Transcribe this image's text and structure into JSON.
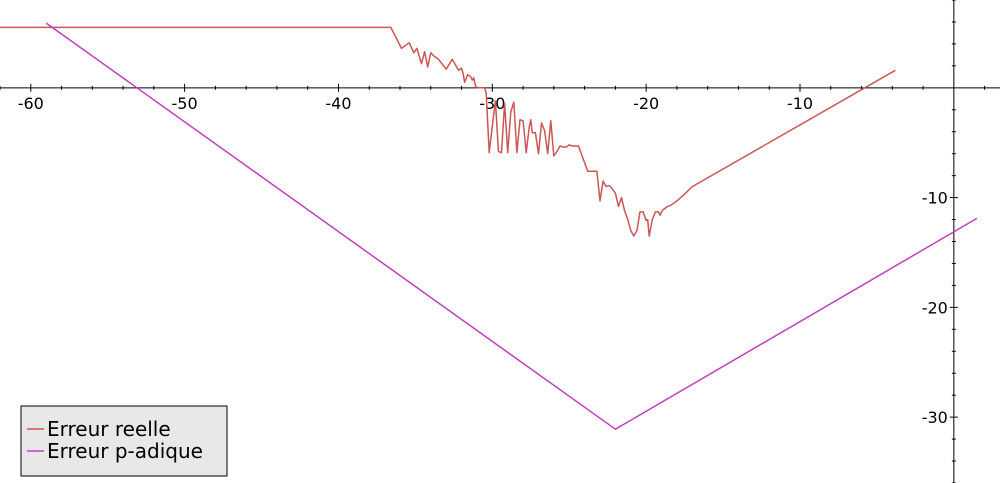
{
  "chart_data": {
    "type": "line",
    "title": "",
    "xlabel": "",
    "ylabel": "",
    "xlim": [
      -62,
      3
    ],
    "ylim": [
      -36,
      8
    ],
    "grid": false,
    "legend_position": "bottom-left",
    "x_ticks": [
      -60,
      -50,
      -40,
      -30,
      -20,
      -10
    ],
    "y_ticks": [
      -10,
      -20,
      -30
    ],
    "series": [
      {
        "name": "Erreur reelle",
        "color": "#cc5555",
        "x": [
          -62,
          -36.6,
          -35.9,
          -35.4,
          -35.1,
          -34.9,
          -34.6,
          -34.4,
          -34.2,
          -34.0,
          -33.8,
          -33.5,
          -33.0,
          -32.6,
          -32.2,
          -32.0,
          -31.9,
          -31.8,
          -31.6,
          -31.4,
          -31.3,
          -31.2,
          -31.1,
          -31.0,
          -30.8,
          -30.6,
          -30.5,
          -30.4,
          -30.2,
          -30.0,
          -29.8,
          -29.6,
          -29.4,
          -29.2,
          -29.0,
          -28.8,
          -28.6,
          -28.4,
          -28.2,
          -28.0,
          -27.8,
          -27.6,
          -27.5,
          -27.4,
          -27.2,
          -27.0,
          -26.8,
          -26.6,
          -26.4,
          -26.2,
          -26.0,
          -25.8,
          -25.6,
          -25.4,
          -25.2,
          -25.0,
          -24.8,
          -24.4,
          -23.8,
          -23.2,
          -23.0,
          -22.8,
          -22.6,
          -22.4,
          -22.2,
          -22.0,
          -21.8,
          -21.6,
          -21.4,
          -21.2,
          -21.0,
          -20.8,
          -20.6,
          -20.4,
          -20.2,
          -20.0,
          -19.9,
          -19.8,
          -19.6,
          -19.4,
          -19.2,
          -19.1,
          -19.0,
          -18.9,
          -18.8,
          -18.6,
          -18.4,
          -18.2,
          -18.0,
          -17.6,
          -17.0,
          -3.8
        ],
        "y": [
          5.5,
          5.5,
          3.6,
          4.1,
          3.2,
          3.6,
          2.2,
          3.3,
          1.9,
          3.2,
          2.9,
          2.6,
          1.7,
          2.6,
          1.6,
          1.8,
          1.3,
          0.5,
          1.2,
          1.0,
          0.7,
          0.9,
          0.2,
          0.0,
          0.0,
          0.0,
          0.0,
          -0.5,
          -5.9,
          -3.5,
          -1.2,
          -5.8,
          -5.9,
          -1.4,
          -5.9,
          -2.2,
          -1.3,
          -5.9,
          -2.9,
          -3.0,
          -5.9,
          -3.6,
          -2.9,
          -4.1,
          -4.1,
          -6.0,
          -3.2,
          -3.9,
          -6.0,
          -3.0,
          -6.2,
          -5.8,
          -5.3,
          -5.4,
          -5.4,
          -5.2,
          -5.3,
          -5.3,
          -7.6,
          -7.6,
          -10.3,
          -8.5,
          -9.0,
          -8.9,
          -9.2,
          -9.6,
          -10.8,
          -10.0,
          -11.2,
          -12.0,
          -13.0,
          -13.5,
          -13.0,
          -11.3,
          -11.3,
          -12.1,
          -12.0,
          -13.5,
          -12.0,
          -11.3,
          -11.3,
          -11.6,
          -11.3,
          -11.1,
          -11.0,
          -10.8,
          -10.7,
          -10.5,
          -10.3,
          -9.8,
          -9.0,
          1.6
        ]
      },
      {
        "name": "Erreur p-adique",
        "color": "#bf40bf",
        "x": [
          -59,
          -22,
          1.5
        ],
        "y": [
          5.9,
          -31.1,
          -11.9
        ]
      }
    ]
  }
}
